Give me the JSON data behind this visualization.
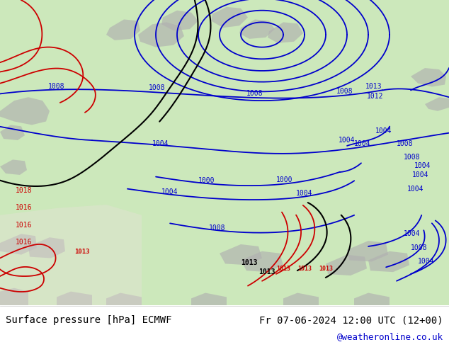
{
  "title_left": "Surface pressure [hPa] ECMWF",
  "title_right": "Fr 07-06-2024 12:00 UTC (12+00)",
  "credit": "@weatheronline.co.uk",
  "bg_color": "#e8e8e8",
  "map_bg_color": "#c8e6c0",
  "sea_color": "#c8e6c0",
  "land_gray_color": "#b0b0b0",
  "bottom_bg": "#ffffff",
  "title_color": "#000000",
  "credit_color": "#0000cc",
  "isobar_blue": "#0000cc",
  "isobar_red": "#cc0000",
  "isobar_black": "#000000",
  "fig_width": 6.34,
  "fig_height": 4.9,
  "dpi": 100
}
